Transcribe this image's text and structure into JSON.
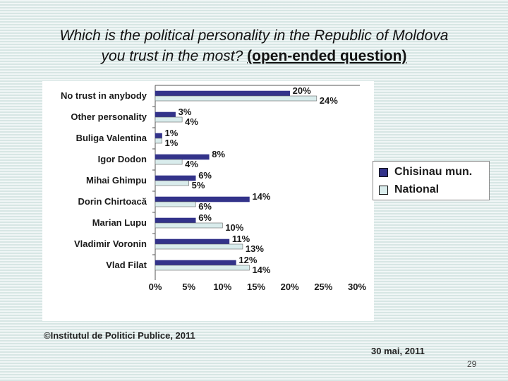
{
  "slide": {
    "title_line1": "Which is the political personality in the Republic of Moldova",
    "title_line2": "you trust in the most?",
    "title_qualifier": "(open-ended question)",
    "footer": "©Institutul de Politici Publice, 2011",
    "date": "30 mai, 2011",
    "page_number": "29"
  },
  "colors": {
    "chisinau": "#33338a",
    "national": "#d9ecec",
    "axis": "#555555"
  },
  "chart_data": {
    "type": "bar",
    "orientation": "horizontal",
    "categories": [
      "No trust in anybody",
      "Other personality",
      "Buliga Valentina",
      "Igor Dodon",
      "Mihai Ghimpu",
      "Dorin Chirtoacă",
      "Marian Lupu",
      "Vladimir Voronin",
      "Vlad Filat"
    ],
    "series": [
      {
        "name": "Chisinau mun.",
        "values": [
          20,
          3,
          1,
          8,
          6,
          14,
          6,
          11,
          12
        ],
        "labels": [
          "20%",
          "3%",
          "1%",
          "8%",
          "6%",
          "14%",
          "6%",
          "11%",
          "12%"
        ]
      },
      {
        "name": "National",
        "values": [
          24,
          4,
          1,
          4,
          5,
          6,
          10,
          13,
          14
        ],
        "labels": [
          "24%",
          "4%",
          "1%",
          "4%",
          "5%",
          "6%",
          "10%",
          "13%",
          "14%"
        ]
      }
    ],
    "xlim": [
      0,
      30
    ],
    "xticks": [
      "0%",
      "5%",
      "10%",
      "15%",
      "20%",
      "25%",
      "30%"
    ],
    "legend_position": "right"
  }
}
